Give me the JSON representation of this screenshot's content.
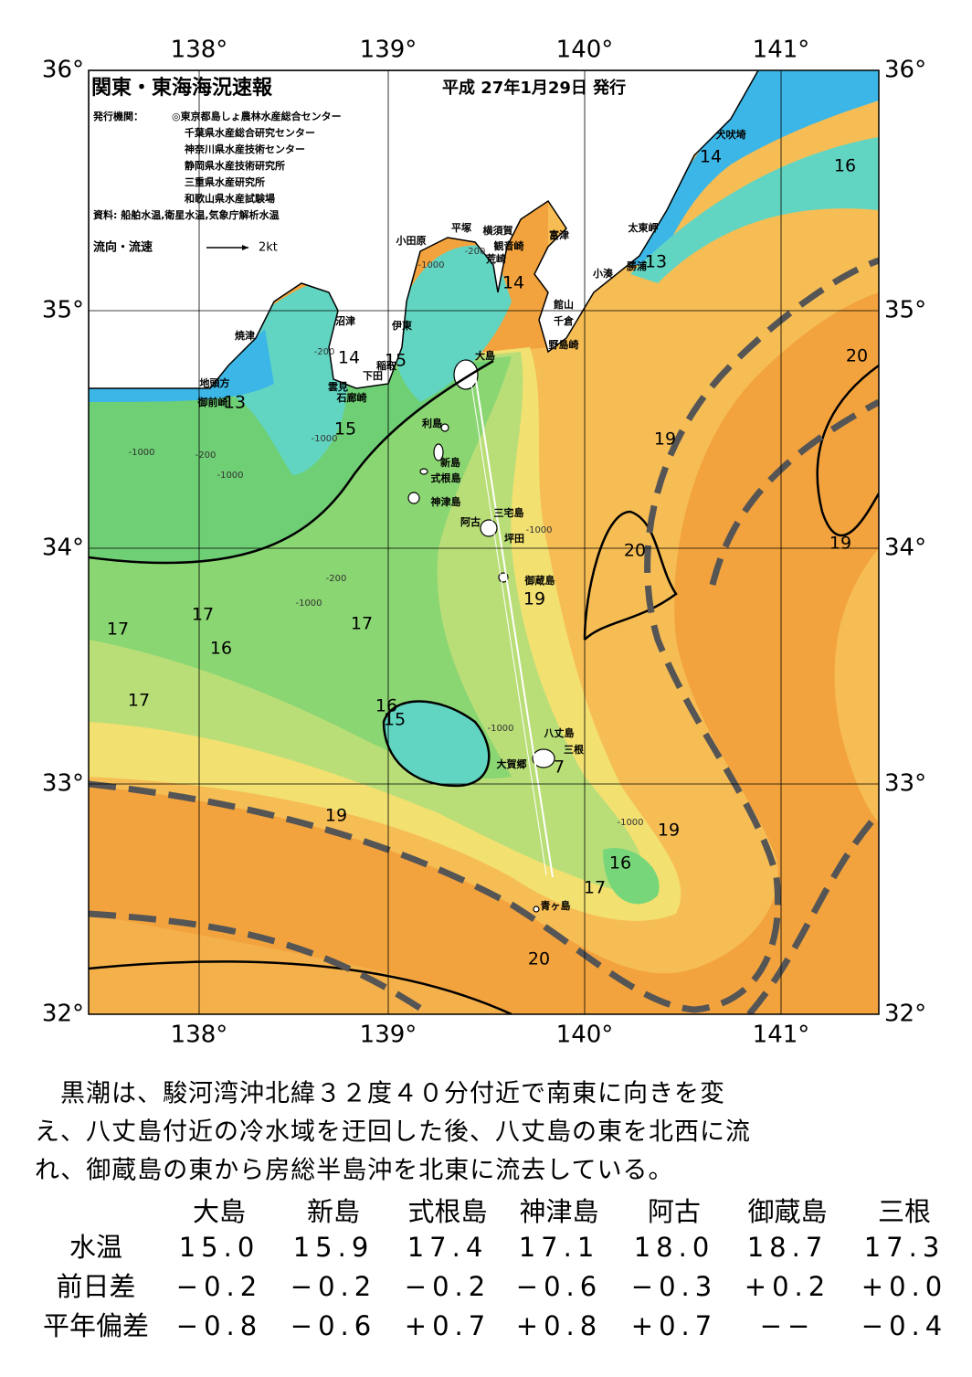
{
  "header": {
    "title": "関東・東海海況速報",
    "date": "平成 27年1月29日 発行",
    "issuer_label": "発行機関：",
    "issuers": [
      "◎東京都島しょ農林水産総合センター",
      "千葉県水産総合研究センター",
      "神奈川県水産技術センター",
      "静岡県水産技術研究所",
      "三重県水産研究所",
      "和歌山県水産試験場"
    ],
    "sources": "資料: 船舶水温,衛星水温,気象庁解析水温",
    "legend_label": "流向・流速",
    "legend_scale": "2kt"
  },
  "map": {
    "lon_labels": [
      "138°",
      "139°",
      "140°",
      "141°"
    ],
    "lat_labels": [
      "36°",
      "35°",
      "34°",
      "33°",
      "32°"
    ],
    "places": [
      "犬吠埼",
      "太東岬",
      "勝浦",
      "小湊",
      "富津",
      "横須賀",
      "観音崎",
      "平塚",
      "荒崎",
      "小田原",
      "館山",
      "千倉",
      "野島崎",
      "沼津",
      "伊東",
      "焼津",
      "稲取",
      "下田",
      "雲見",
      "石廊崎",
      "地頭方",
      "御前崎",
      "大島",
      "利島",
      "新島",
      "式根島",
      "神津島",
      "三宅島",
      "阿古",
      "坪田",
      "御蔵島",
      "八丈島",
      "三根",
      "大賀郷",
      "青ヶ島"
    ],
    "isotherm_labels": [
      14,
      16,
      13,
      14,
      14,
      15,
      13,
      15,
      19,
      20,
      20,
      19,
      19,
      17,
      17,
      17,
      16,
      17,
      16,
      15,
      7,
      19,
      19,
      16,
      17,
      20
    ],
    "depth_labels": [
      "-200",
      "-1000",
      "-200",
      "-1000",
      "-200",
      "-1000",
      "-1000",
      "-200",
      "-1000",
      "-1000",
      "-1000",
      "-1000"
    ]
  },
  "text": {
    "lines": [
      "　黒潮は、駿河湾沖北緯３２度４０分付近で南東に向きを変",
      "え、八丈島付近の冷水域を迂回した後、八丈島の東を北西に流",
      "れ、御蔵島の東から房総半島沖を北東に流去している。"
    ]
  },
  "table": {
    "columns": [
      "大島",
      "新島",
      "式根島",
      "神津島",
      "阿古",
      "御蔵島",
      "三根"
    ],
    "rows": [
      {
        "label": "水温",
        "cells": [
          "15.0",
          "15.9",
          "17.4",
          "17.1",
          "18.0",
          "18.7",
          "17.3"
        ]
      },
      {
        "label": "前日差",
        "cells": [
          "−0.2",
          "−0.2",
          "−0.2",
          "−0.6",
          "−0.3",
          "+0.2",
          "+0.0"
        ]
      },
      {
        "label": "平年偏差",
        "cells": [
          "−0.8",
          "−0.6",
          "+0.7",
          "+0.8",
          "+0.7",
          "−−",
          "−0.4"
        ]
      }
    ]
  }
}
